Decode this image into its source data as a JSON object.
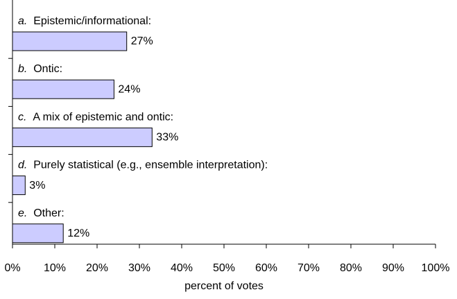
{
  "chart_data": {
    "type": "bar",
    "orientation": "horizontal",
    "categories": [
      "a. Epistemic/informational:",
      "b. Ontic:",
      "c. A mix of epistemic and ontic:",
      "d. Purely statistical (e.g., ensemble interpretation):",
      "e. Other:"
    ],
    "values": [
      27,
      24,
      33,
      3,
      12
    ],
    "value_labels": [
      "27%",
      "24%",
      "33%",
      "3%",
      "12%"
    ],
    "color": "#ccccff",
    "xlabel": "percent of votes",
    "xlim": [
      0,
      100
    ],
    "xticks": [
      {
        "value": 0,
        "label": "0%"
      },
      {
        "value": 10,
        "label": "10%"
      },
      {
        "value": 20,
        "label": "20%"
      },
      {
        "value": 30,
        "label": "30%"
      },
      {
        "value": 40,
        "label": "40%"
      },
      {
        "value": 50,
        "label": "50%"
      },
      {
        "value": 60,
        "label": "60%"
      },
      {
        "value": 70,
        "label": "70%"
      },
      {
        "value": 80,
        "label": "80%"
      },
      {
        "value": 90,
        "label": "90%"
      },
      {
        "value": 100,
        "label": "100%"
      }
    ]
  }
}
